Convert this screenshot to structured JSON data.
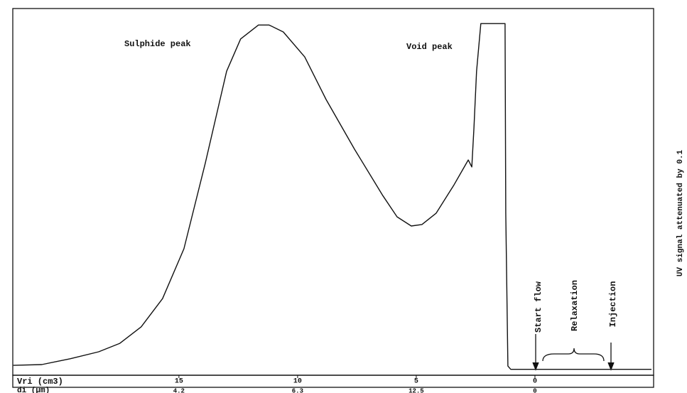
{
  "chart_data": {
    "type": "line",
    "x_label": "Vri (cm3)",
    "x2_label": "di (µm)",
    "y_label": "UV signal attenuated by 0.1",
    "annotations": [
      "Sulphide peak",
      "Void peak",
      "Start flow",
      "Relaxation",
      "Injection"
    ],
    "xlim": [
      22,
      -5
    ],
    "xticks": [
      15,
      10,
      5,
      0
    ],
    "x2ticks": [
      {
        "value": 15,
        "label": "4.2"
      },
      {
        "value": 10,
        "label": "6.3"
      },
      {
        "value": 5,
        "label": "12.5"
      },
      0
    ],
    "ylim": [
      0,
      100
    ],
    "x": [
      21.98,
      20.78,
      19.58,
      18.38,
      17.49,
      16.59,
      15.69,
      14.79,
      13.89,
      12.99,
      12.4,
      11.65,
      11.2,
      10.6,
      9.7,
      8.8,
      7.6,
      6.41,
      5.81,
      5.21,
      4.76,
      4.16,
      3.41,
      2.81,
      2.66,
      2.57,
      2.46,
      2.28,
      2.22,
      1.26,
      1.23,
      1.14,
      1.02,
      -4.91
    ],
    "series": [
      {
        "color": "#111111",
        "values": [
          2.7,
          2.9,
          4.5,
          6.4,
          8.7,
          13.2,
          20.9,
          34.5,
          57.8,
          82.9,
          91.7,
          95.5,
          95.5,
          93.6,
          86.8,
          75.2,
          61.6,
          49.0,
          43.2,
          40.7,
          41.1,
          44.2,
          51.9,
          58.7,
          56.8,
          67.4,
          82.9,
          95.9,
          95.9,
          95.9,
          44.2,
          2.5,
          1.6,
          1.6
        ]
      }
    ]
  }
}
